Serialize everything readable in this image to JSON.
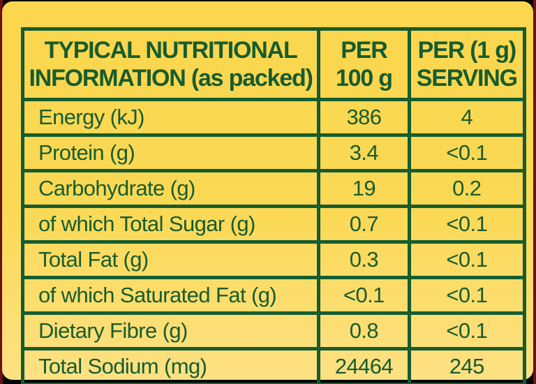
{
  "colors": {
    "card_yellow": "#fbd955",
    "card_yellow_light": "#fde183",
    "grid_green": "#175c2e",
    "edge_dark_red": "#6b1216",
    "edge_black": "#000000"
  },
  "table": {
    "header": {
      "info": "TYPICAL NUTRITIONAL\nINFORMATION (as packed)",
      "per100": "PER\n100 g",
      "serving": "PER (1 g)\nSERVING"
    },
    "rows": [
      {
        "label": "Energy (kJ)",
        "per100": "386",
        "serving": "4"
      },
      {
        "label": "Protein (g)",
        "per100": "3.4",
        "serving": "<0.1"
      },
      {
        "label": "Carbohydrate (g)",
        "per100": "19",
        "serving": "0.2"
      },
      {
        "label": "of which Total Sugar (g)",
        "per100": "0.7",
        "serving": "<0.1"
      },
      {
        "label": "Total Fat (g)",
        "per100": "0.3",
        "serving": "<0.1"
      },
      {
        "label": "of which Saturated Fat (g)",
        "per100": "<0.1",
        "serving": "<0.1"
      },
      {
        "label": "Dietary Fibre (g)",
        "per100": "0.8",
        "serving": "<0.1"
      },
      {
        "label": "Total Sodium (mg)",
        "per100": "24464",
        "serving": "245"
      }
    ]
  }
}
